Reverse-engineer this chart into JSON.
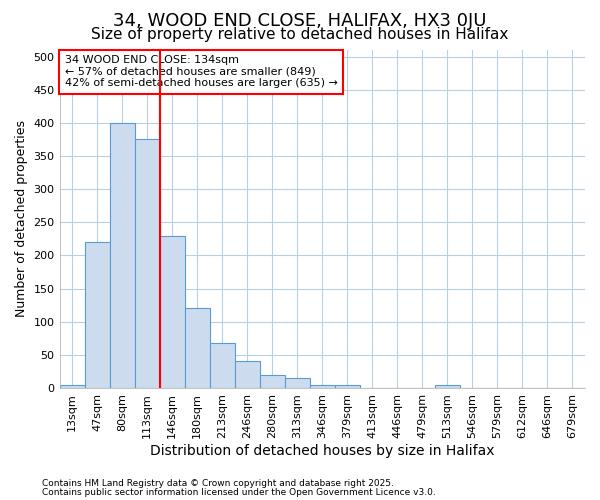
{
  "title1": "34, WOOD END CLOSE, HALIFAX, HX3 0JU",
  "title2": "Size of property relative to detached houses in Halifax",
  "xlabel": "Distribution of detached houses by size in Halifax",
  "ylabel": "Number of detached properties",
  "bar_labels": [
    "13sqm",
    "47sqm",
    "80sqm",
    "113sqm",
    "146sqm",
    "180sqm",
    "213sqm",
    "246sqm",
    "280sqm",
    "313sqm",
    "346sqm",
    "379sqm",
    "413sqm",
    "446sqm",
    "479sqm",
    "513sqm",
    "546sqm",
    "579sqm",
    "612sqm",
    "646sqm",
    "679sqm"
  ],
  "bar_heights": [
    5,
    220,
    400,
    375,
    230,
    120,
    68,
    40,
    20,
    15,
    5,
    5,
    0,
    0,
    0,
    5,
    0,
    0,
    0,
    0,
    0
  ],
  "bar_color": "#ccdcee",
  "bar_edge_color": "#5b9bd5",
  "grid_color": "#b8cfe4",
  "red_line_x": 3.5,
  "annotation_text": "34 WOOD END CLOSE: 134sqm\n← 57% of detached houses are smaller (849)\n42% of semi-detached houses are larger (635) →",
  "ylim": [
    0,
    510
  ],
  "yticks": [
    0,
    50,
    100,
    150,
    200,
    250,
    300,
    350,
    400,
    450,
    500
  ],
  "footer1": "Contains HM Land Registry data © Crown copyright and database right 2025.",
  "footer2": "Contains public sector information licensed under the Open Government Licence v3.0.",
  "bg_color": "#ffffff",
  "plot_bg_color": "#ffffff",
  "title1_fontsize": 13,
  "title2_fontsize": 11,
  "tick_fontsize": 8,
  "ylabel_fontsize": 9,
  "xlabel_fontsize": 10
}
